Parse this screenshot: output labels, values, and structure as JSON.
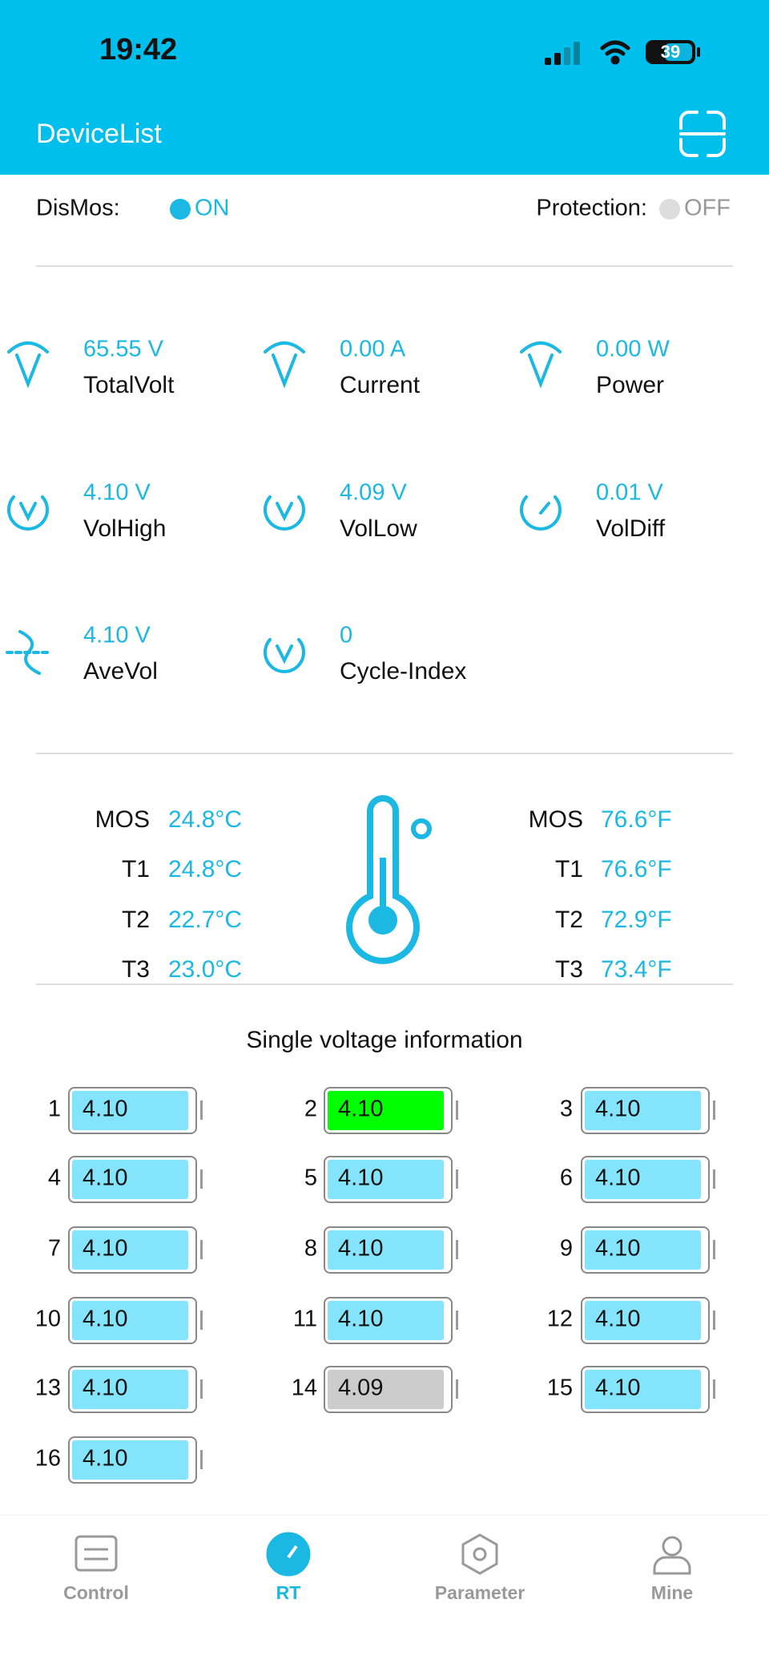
{
  "status_bar": {
    "time": "19:42",
    "battery": "39"
  },
  "header": {
    "title": "DeviceList"
  },
  "status": {
    "dismos_label": "DisMos:",
    "dismos_value": "ON",
    "protection_label": "Protection:",
    "protection_value": "OFF"
  },
  "metrics": [
    {
      "value": "65.55 V",
      "label": "TotalVolt"
    },
    {
      "value": "0.00 A",
      "label": "Current"
    },
    {
      "value": "0.00 W",
      "label": "Power"
    },
    {
      "value": "4.10 V",
      "label": "VolHigh"
    },
    {
      "value": "4.09 V",
      "label": "VolLow"
    },
    {
      "value": "0.01 V",
      "label": "VolDiff"
    },
    {
      "value": "4.10 V",
      "label": "AveVol"
    },
    {
      "value": "0",
      "label": "Cycle-Index"
    }
  ],
  "temperatures": {
    "celsius": [
      {
        "label": "MOS",
        "value": "24.8°C"
      },
      {
        "label": "T1",
        "value": "24.8°C"
      },
      {
        "label": "T2",
        "value": "22.7°C"
      },
      {
        "label": "T3",
        "value": "23.0°C"
      }
    ],
    "fahrenheit": [
      {
        "label": "MOS",
        "value": "76.6°F"
      },
      {
        "label": "T1",
        "value": "76.6°F"
      },
      {
        "label": "T2",
        "value": "72.9°F"
      },
      {
        "label": "T3",
        "value": "73.4°F"
      }
    ]
  },
  "cells": {
    "title": "Single voltage information",
    "items": [
      {
        "index": "1",
        "value": "4.10",
        "color": "#84e4fb"
      },
      {
        "index": "2",
        "value": "4.10",
        "color": "#00ff00"
      },
      {
        "index": "3",
        "value": "4.10",
        "color": "#84e4fb"
      },
      {
        "index": "4",
        "value": "4.10",
        "color": "#84e4fb"
      },
      {
        "index": "5",
        "value": "4.10",
        "color": "#84e4fb"
      },
      {
        "index": "6",
        "value": "4.10",
        "color": "#84e4fb"
      },
      {
        "index": "7",
        "value": "4.10",
        "color": "#84e4fb"
      },
      {
        "index": "8",
        "value": "4.10",
        "color": "#84e4fb"
      },
      {
        "index": "9",
        "value": "4.10",
        "color": "#84e4fb"
      },
      {
        "index": "10",
        "value": "4.10",
        "color": "#84e4fb"
      },
      {
        "index": "11",
        "value": "4.10",
        "color": "#84e4fb"
      },
      {
        "index": "12",
        "value": "4.10",
        "color": "#84e4fb"
      },
      {
        "index": "13",
        "value": "4.10",
        "color": "#84e4fb"
      },
      {
        "index": "14",
        "value": "4.09",
        "color": "#cccccc"
      },
      {
        "index": "15",
        "value": "4.10",
        "color": "#84e4fb"
      },
      {
        "index": "16",
        "value": "4.10",
        "color": "#84e4fb"
      }
    ]
  },
  "nav": [
    {
      "label": "Control",
      "active": false
    },
    {
      "label": "RT",
      "active": true
    },
    {
      "label": "Parameter",
      "active": false
    },
    {
      "label": "Mine",
      "active": false
    }
  ]
}
